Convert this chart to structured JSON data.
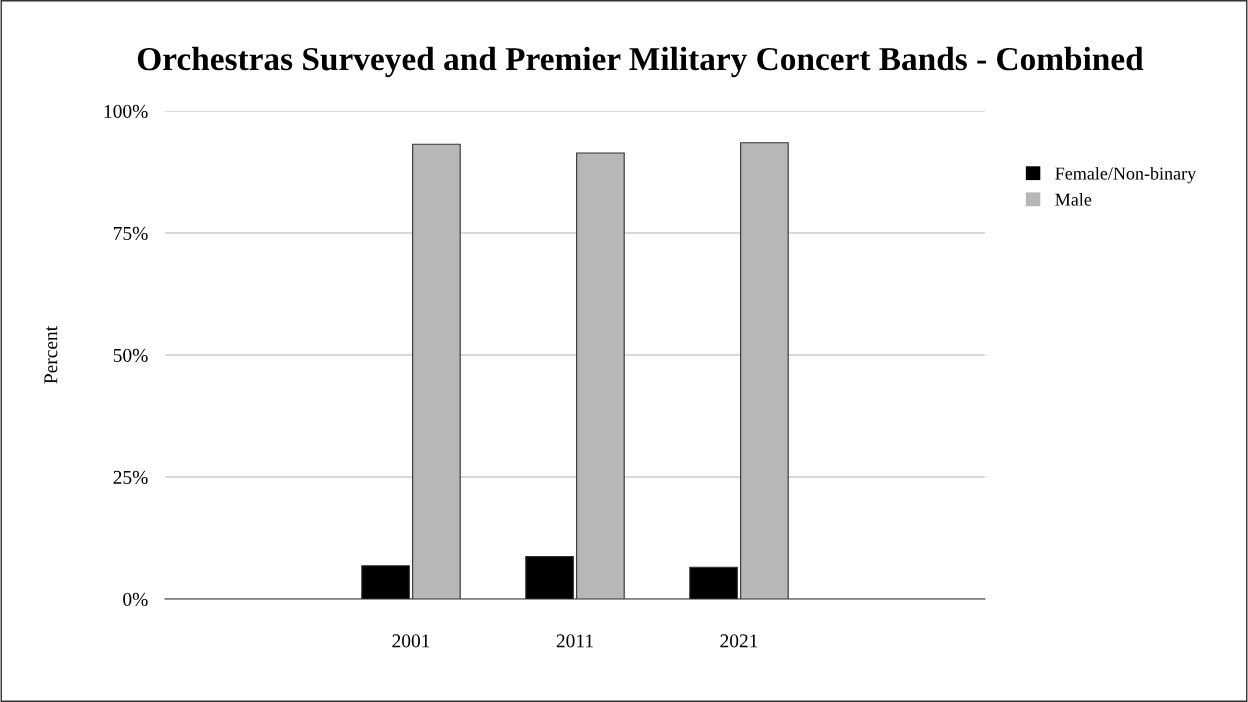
{
  "chart_data": {
    "type": "bar",
    "title": "Orchestras Surveyed and Premier Military Concert Bands - Combined",
    "ylabel": "Percent",
    "categories": [
      null,
      "2001",
      "2011",
      "2021",
      null
    ],
    "series": [
      {
        "name": "Female/Non-binary",
        "color": "#000000",
        "values": [
          null,
          6.8,
          8.7,
          6.5,
          null
        ]
      },
      {
        "name": "Male",
        "color": "#b7b7b7",
        "values": [
          null,
          93.2,
          91.4,
          93.5,
          null
        ]
      }
    ],
    "ylim": [
      0,
      100
    ],
    "yticks": [
      {
        "value": 0,
        "label": "0%"
      },
      {
        "value": 25,
        "label": "25%"
      },
      {
        "value": 50,
        "label": "50%"
      },
      {
        "value": 75,
        "label": "75%"
      },
      {
        "value": 100,
        "label": "100%"
      }
    ],
    "grid": "y",
    "legend": "right"
  }
}
